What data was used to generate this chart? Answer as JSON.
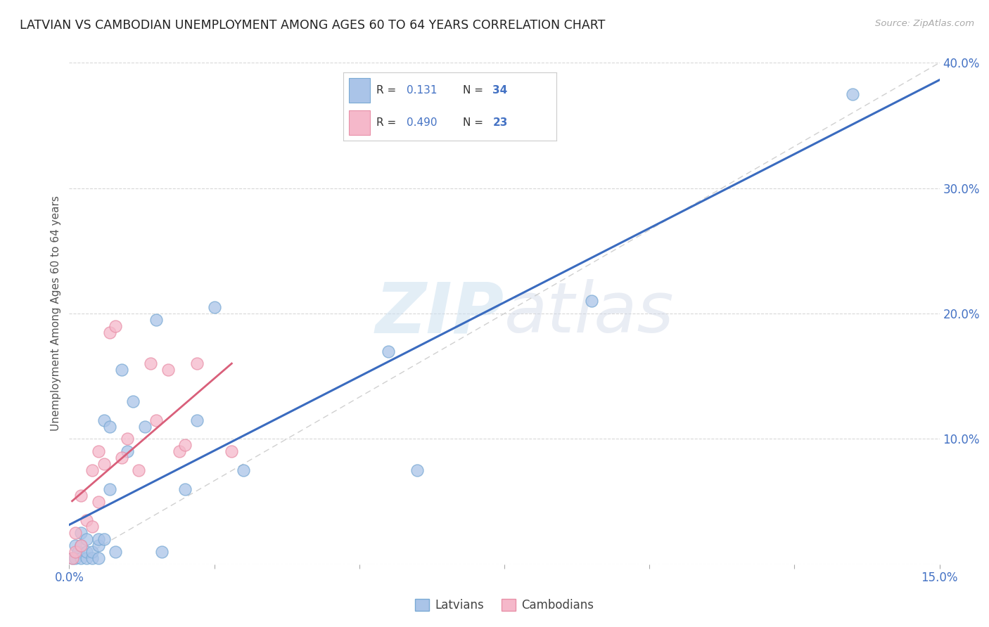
{
  "title": "LATVIAN VS CAMBODIAN UNEMPLOYMENT AMONG AGES 60 TO 64 YEARS CORRELATION CHART",
  "source": "Source: ZipAtlas.com",
  "ylabel": "Unemployment Among Ages 60 to 64 years",
  "xlim": [
    0.0,
    0.15
  ],
  "ylim": [
    0.0,
    0.4
  ],
  "xticks": [
    0.0,
    0.025,
    0.05,
    0.075,
    0.1,
    0.125,
    0.15
  ],
  "xticklabels": [
    "0.0%",
    "",
    "",
    "",
    "",
    "",
    "15.0%"
  ],
  "yticks": [
    0.0,
    0.1,
    0.2,
    0.3,
    0.4
  ],
  "yticklabels": [
    "",
    "10.0%",
    "20.0%",
    "30.0%",
    "40.0%"
  ],
  "latvian_fill": "#aac4e8",
  "latvian_edge": "#7aaad4",
  "cambodian_fill": "#f5b8ca",
  "cambodian_edge": "#e890a8",
  "latvian_line_color": "#3a6bbf",
  "cambodian_line_color": "#d95f7a",
  "diag_line_color": "#c8c8c8",
  "R_latvian": "0.131",
  "N_latvian": "34",
  "R_cambodian": "0.490",
  "N_cambodian": "23",
  "latvians_x": [
    0.0005,
    0.001,
    0.001,
    0.0015,
    0.002,
    0.002,
    0.002,
    0.003,
    0.003,
    0.003,
    0.004,
    0.004,
    0.005,
    0.005,
    0.005,
    0.006,
    0.006,
    0.007,
    0.007,
    0.008,
    0.009,
    0.01,
    0.011,
    0.013,
    0.015,
    0.016,
    0.02,
    0.022,
    0.025,
    0.03,
    0.055,
    0.06,
    0.09,
    0.135
  ],
  "latvians_y": [
    0.005,
    0.005,
    0.015,
    0.01,
    0.005,
    0.015,
    0.025,
    0.005,
    0.01,
    0.02,
    0.005,
    0.01,
    0.005,
    0.015,
    0.02,
    0.02,
    0.115,
    0.06,
    0.11,
    0.01,
    0.155,
    0.09,
    0.13,
    0.11,
    0.195,
    0.01,
    0.06,
    0.115,
    0.205,
    0.075,
    0.17,
    0.075,
    0.21,
    0.375
  ],
  "cambodians_x": [
    0.0005,
    0.001,
    0.001,
    0.002,
    0.002,
    0.003,
    0.004,
    0.004,
    0.005,
    0.005,
    0.006,
    0.007,
    0.008,
    0.009,
    0.01,
    0.012,
    0.014,
    0.015,
    0.017,
    0.019,
    0.02,
    0.022,
    0.028
  ],
  "cambodians_y": [
    0.005,
    0.01,
    0.025,
    0.015,
    0.055,
    0.035,
    0.03,
    0.075,
    0.05,
    0.09,
    0.08,
    0.185,
    0.19,
    0.085,
    0.1,
    0.075,
    0.16,
    0.115,
    0.155,
    0.09,
    0.095,
    0.16,
    0.09
  ],
  "watermark_zip": "ZIP",
  "watermark_atlas": "atlas",
  "background_color": "#ffffff",
  "grid_color": "#d8d8d8",
  "legend_label_latvians": "Latvians",
  "legend_label_cambodians": "Cambodians"
}
